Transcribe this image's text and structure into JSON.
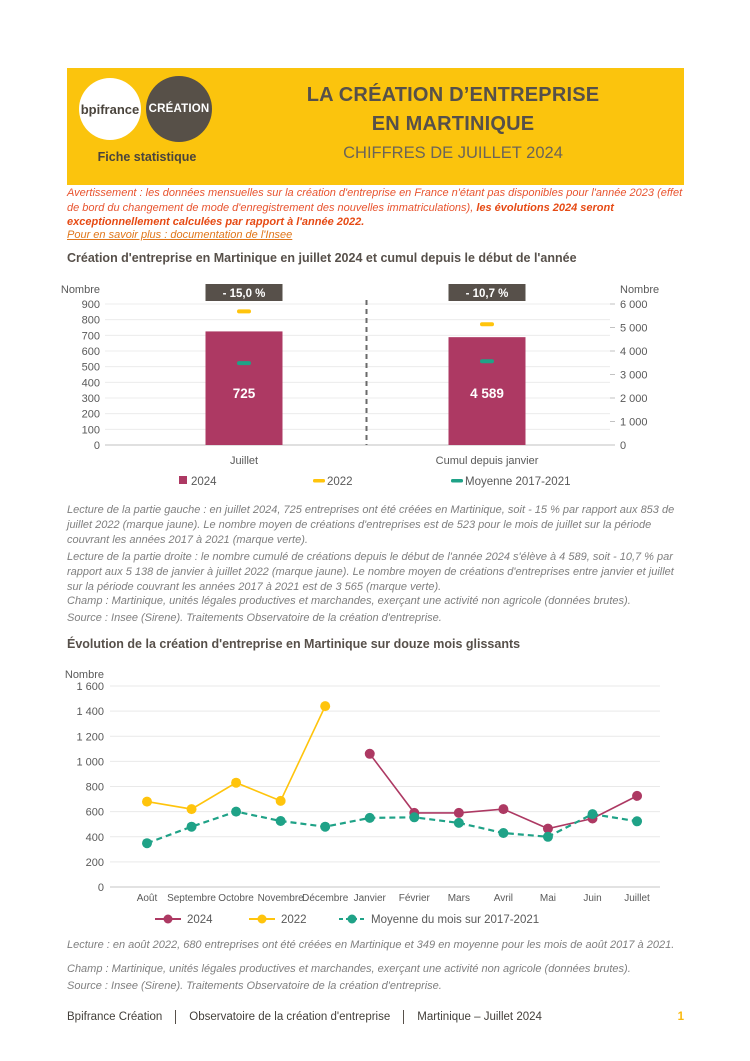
{
  "header": {
    "logo_bpifrance": "bpifrance",
    "logo_creation": "CRÉATION",
    "tagline": "Fiche statistique",
    "title_line1": "LA CRÉATION D’ENTREPRISE",
    "title_line2": "EN MARTINIQUE",
    "subtitle": "CHIFFRES DE JUILLET 2024"
  },
  "notice": {
    "warning_regular": "Avertissement : les données mensuelles sur la création d'entreprise en France n'étant pas disponibles pour l'année 2023 (effet de bord du changement de mode d'enregistrement des nouvelles immatriculations),  ",
    "warning_bold": "les évolutions 2024 seront exceptionnellement calculées par rapport à l'année 2022.",
    "link": "Pour en savoir plus : documentation de l'Insee"
  },
  "lectures": {
    "left": "Lecture de la partie gauche : en juillet 2024, 725 entreprises ont été créées en Martinique, soit - 15 % par rapport aux 853 de juillet 2022 (marque jaune). Le nombre moyen de créations d'entreprises est de 523 pour le mois de juillet sur la période couvrant les années 2017 à 2021 (marque verte).",
    "right": "Lecture de la partie droite : le nombre cumulé de créations depuis le début de l'année 2024 s'élève à 4 589, soit - 10,7 % par rapport aux 5 138 de janvier à juillet 2022 (marque jaune). Le nombre moyen de créations d'entreprises entre janvier et juillet sur la période couvrant les années 2017 à 2021 est de 3 565 (marque verte).",
    "champ": "Champ : Martinique, unités légales productives et marchandes, exerçant une activité non agricole (données brutes).",
    "source": "Source : Insee (Sirene). Traitements Observatoire de la création d'entreprise.",
    "line_chart": "Lecture : en août 2022, 680 entreprises ont été créées en Martinique et 349 en moyenne pour les mois de août 2017 à 2021."
  },
  "footer": {
    "items": [
      "Bpifrance Création",
      "Observatoire de la création d'entreprise",
      "Martinique – Juillet 2024"
    ],
    "page": "1"
  },
  "chart_data": [
    {
      "type": "bar",
      "title": "Création d'entreprise en Martinique en juillet 2024 et cumul depuis le début de l'année",
      "left_axis": {
        "label": "Nombre",
        "min": 0,
        "max": 900,
        "step": 100
      },
      "right_axis": {
        "label": "Nombre",
        "min": 0,
        "max": 6000,
        "step": 1000
      },
      "colors": {
        "bar": "#AD3963",
        "y2022": "#FFC40C",
        "mean": "#1FA287",
        "badge": "#57504A"
      },
      "groups": [
        {
          "category": "Juillet",
          "axis": "left",
          "badge": "- 15,0 %",
          "bar_2024": 725,
          "bar_label": "725",
          "marker_2022": 853,
          "marker_mean": 523
        },
        {
          "category": "Cumul depuis janvier",
          "axis": "right",
          "badge": "- 10,7 %",
          "bar_2024": 4589,
          "bar_label": "4 589",
          "marker_2022": 5138,
          "marker_mean": 3565
        }
      ],
      "legend": [
        {
          "label": "2024",
          "color": "#AD3963",
          "shape": "square"
        },
        {
          "label": "2022",
          "color": "#FFC40C",
          "shape": "dash"
        },
        {
          "label": "Moyenne 2017-2021",
          "color": "#1FA287",
          "shape": "dash"
        }
      ]
    },
    {
      "type": "line",
      "title": "Évolution de la création d'entreprise en Martinique sur douze mois glissants",
      "ylabel": "Nombre",
      "ylim": [
        0,
        1600
      ],
      "ystep": 200,
      "categories": [
        "Août",
        "Septembre",
        "Octobre",
        "Novembre",
        "Décembre",
        "Janvier",
        "Février",
        "Mars",
        "Avril",
        "Mai",
        "Juin",
        "Juillet"
      ],
      "series": [
        {
          "name": "2024",
          "color": "#AD3963",
          "style": "solid",
          "values": [
            null,
            null,
            null,
            null,
            null,
            1060,
            590,
            590,
            620,
            465,
            545,
            725
          ]
        },
        {
          "name": "2022",
          "color": "#FFC40C",
          "style": "solid",
          "values": [
            680,
            620,
            830,
            685,
            1440,
            null,
            null,
            null,
            null,
            null,
            null,
            null
          ]
        },
        {
          "name": "Moyenne du mois sur 2017-2021",
          "color": "#1FA287",
          "style": "dashed",
          "values": [
            349,
            480,
            600,
            525,
            480,
            550,
            555,
            510,
            430,
            400,
            580,
            523
          ]
        }
      ]
    }
  ]
}
